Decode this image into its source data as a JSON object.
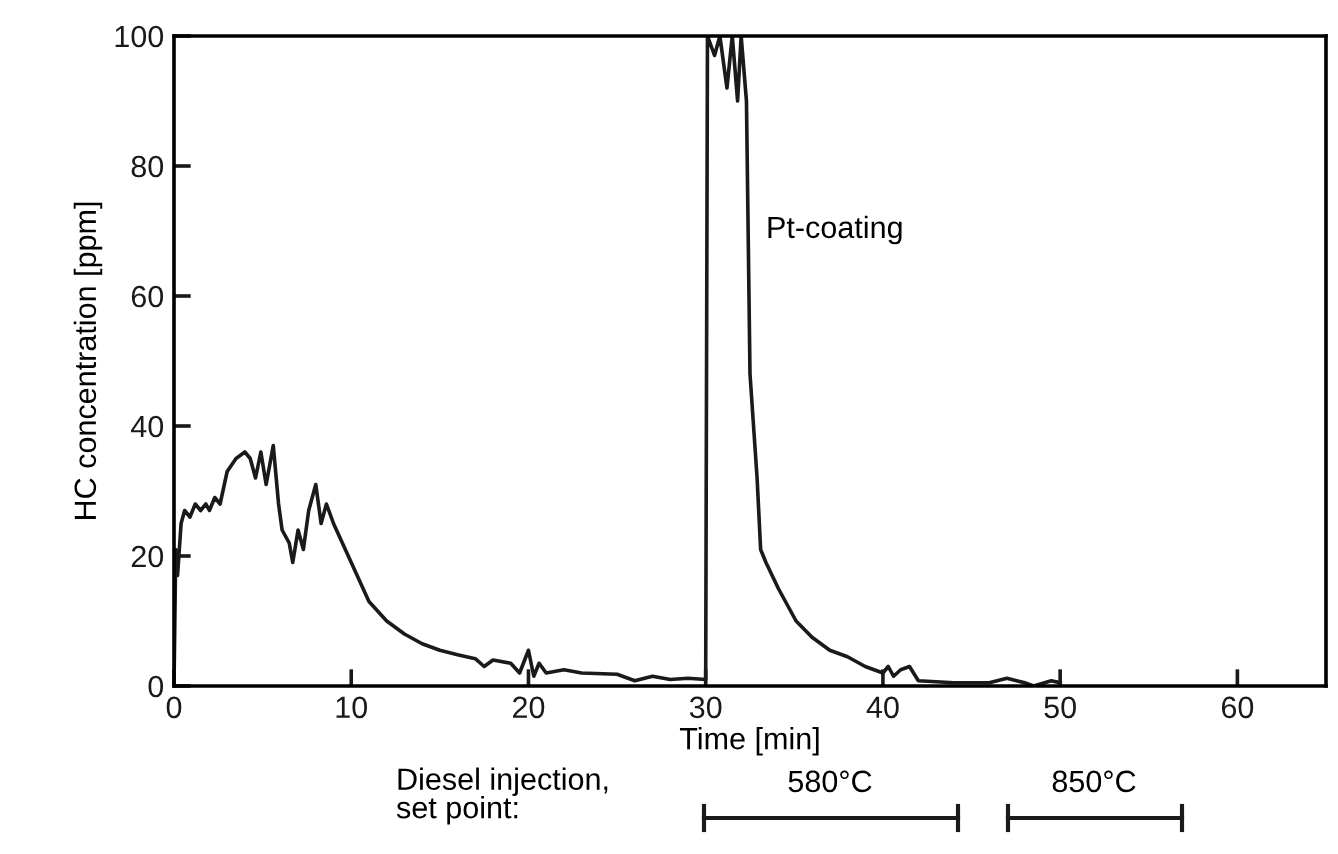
{
  "chart_data": {
    "type": "line",
    "xlabel": "Time [min]",
    "ylabel": "HC concentration [ppm]",
    "xlim": [
      0,
      65
    ],
    "ylim": [
      0,
      100
    ],
    "xticks": [
      0,
      10,
      20,
      30,
      40,
      50,
      60
    ],
    "yticks": [
      0,
      20,
      40,
      60,
      80,
      100
    ],
    "grid": false,
    "legend": false,
    "marker": "none",
    "line_style": "solid",
    "series": [
      {
        "color": "#1a1a1a",
        "x": [
          0,
          0.1,
          0.2,
          0.4,
          0.6,
          0.9,
          1.2,
          1.5,
          1.8,
          2.0,
          2.3,
          2.6,
          3.0,
          3.5,
          4.0,
          4.3,
          4.6,
          4.9,
          5.2,
          5.6,
          5.9,
          6.1,
          6.5,
          6.7,
          7.0,
          7.3,
          7.6,
          8.0,
          8.3,
          8.6,
          9.0,
          10,
          11,
          12,
          13,
          14,
          15,
          16,
          17,
          17.5,
          18,
          19,
          19.5,
          20,
          20.3,
          20.6,
          21,
          22,
          23,
          25,
          26,
          27,
          28,
          29,
          30,
          30.1,
          30.5,
          30.8,
          31.2,
          31.5,
          31.8,
          32,
          32.3,
          32.5,
          32.9,
          33.1,
          33.4,
          34.1,
          35.1,
          36,
          37,
          38,
          39,
          40,
          40.3,
          40.6,
          41,
          41.5,
          42,
          44,
          46,
          47,
          48,
          48.5,
          49.5,
          50
        ],
        "values": [
          0,
          21,
          17,
          25,
          27,
          26,
          28,
          27,
          28,
          27,
          29,
          28,
          33,
          35,
          36,
          35,
          32,
          36,
          31,
          37,
          28,
          24,
          22,
          19,
          24,
          21,
          27,
          31,
          25,
          28,
          25,
          19,
          13,
          10,
          8,
          6.5,
          5.5,
          4.8,
          4.2,
          3,
          4,
          3.5,
          2,
          5.5,
          1.5,
          3.5,
          2,
          2.5,
          2,
          1.8,
          0.8,
          1.5,
          1,
          1.2,
          1,
          100,
          97,
          100,
          92,
          100,
          90,
          100,
          90,
          48,
          32,
          21,
          19,
          15,
          10,
          7.5,
          5.5,
          4.5,
          3,
          2,
          3,
          1.5,
          2.5,
          3,
          0.8,
          0.5,
          0.5,
          1.2,
          0.5,
          0,
          0.8,
          0.5
        ]
      }
    ],
    "annotations": [
      "Pt-coating",
      "Diesel injection,\nset point:",
      "580°C",
      "850°C"
    ]
  }
}
